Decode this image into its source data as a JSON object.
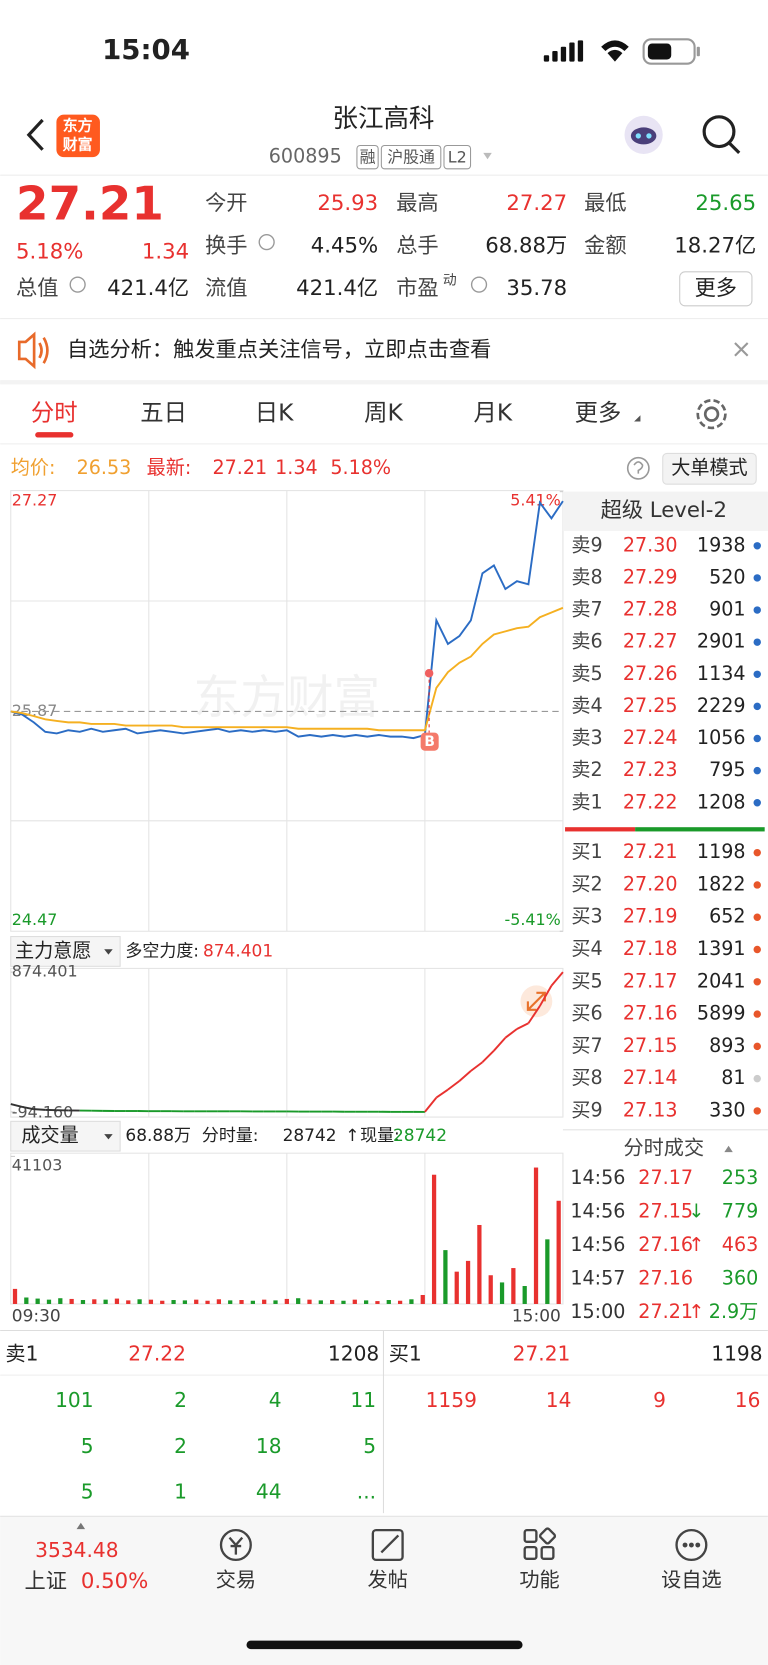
{
  "status_bar": {
    "time": "15:04"
  },
  "header": {
    "logo": [
      "东方",
      "财富"
    ],
    "title": "张江高科",
    "code": "600895",
    "tags": [
      "融",
      "沪股通",
      "L2"
    ]
  },
  "quote": {
    "price": "27.21",
    "change_pct": "5.18%",
    "change": "1.34",
    "stats": [
      [
        {
          "label": "今开",
          "value": "25.93"
        },
        {
          "label": "最高",
          "value": "27.27"
        },
        {
          "label": "最低",
          "value": "25.65"
        }
      ],
      [
        {
          "label": "换手",
          "value": "4.45%"
        },
        {
          "label": "总手",
          "value": "68.88万"
        },
        {
          "label": "金额",
          "value": "18.27亿"
        }
      ],
      [
        {
          "label": "总值",
          "value": "421.4亿"
        },
        {
          "label": "流值",
          "value": "421.4亿"
        },
        {
          "label": "市盈",
          "sup": "动",
          "value": "35.78"
        }
      ]
    ],
    "more": "更多"
  },
  "notice": "自选分析：触发重点关注信号，立即点击查看",
  "tabs": [
    "分时",
    "五日",
    "日K",
    "周K",
    "月K",
    "更多"
  ],
  "info_bar": {
    "avg_label": "均价:",
    "avg": "26.53",
    "latest_label": "最新:",
    "latest": "27.21",
    "change": "1.34",
    "change_pct": "5.18%",
    "button": "大单模式"
  },
  "chart_data": [
    {
      "type": "line",
      "watermark": "东方财富",
      "marker": "B",
      "ylim": [
        24.47,
        27.27
      ],
      "yticks": [
        27.27,
        25.87,
        24.47
      ],
      "y2lim": [
        -5.41,
        5.41
      ],
      "y2ticks": [
        {
          "value": 5.41,
          "label": "5.41%"
        },
        {
          "value": -5.41,
          "label": "-5.41%"
        }
      ],
      "series": [
        {
          "color": "#2b6cc4",
          "values": [
            25.87,
            25.85,
            25.8,
            25.74,
            25.73,
            25.75,
            25.74,
            25.76,
            25.74,
            25.75,
            25.76,
            25.73,
            25.74,
            25.75,
            25.74,
            25.73,
            25.74,
            25.75,
            25.76,
            25.74,
            25.75,
            25.74,
            25.75,
            25.74,
            25.75,
            25.71,
            25.72,
            25.71,
            25.72,
            25.71,
            25.72,
            25.71,
            25.72,
            25.71,
            25.71,
            25.7,
            25.72,
            26.45,
            26.3,
            26.35,
            26.45,
            26.75,
            26.8,
            26.65,
            26.7,
            26.68,
            27.2,
            27.1,
            27.21
          ]
        },
        {
          "color": "#f5b021",
          "values": [
            25.87,
            25.86,
            25.84,
            25.82,
            25.81,
            25.8,
            25.8,
            25.79,
            25.79,
            25.79,
            25.78,
            25.78,
            25.78,
            25.78,
            25.78,
            25.77,
            25.77,
            25.77,
            25.77,
            25.77,
            25.77,
            25.77,
            25.77,
            25.77,
            25.77,
            25.76,
            25.76,
            25.76,
            25.76,
            25.76,
            25.76,
            25.76,
            25.75,
            25.75,
            25.75,
            25.75,
            25.75,
            26.02,
            26.12,
            26.18,
            26.22,
            26.3,
            26.36,
            26.38,
            26.4,
            26.41,
            26.47,
            26.5,
            26.53
          ]
        }
      ]
    },
    {
      "type": "line",
      "title": "主力意愿",
      "indicator_label": "多空力度:",
      "indicator_value": "874.401",
      "ylim": [
        -130,
        900
      ],
      "yticks": [
        874.401,
        {
          "value": -94.16,
          "label": "-94.160"
        }
      ],
      "values": [
        -40,
        -60,
        -75,
        -80,
        -82,
        -84,
        -85,
        -86,
        -87,
        -88,
        -88,
        -88,
        -89,
        -89,
        -89,
        -90,
        -90,
        -90,
        -90,
        -90,
        -90,
        -91,
        -91,
        -91,
        -91,
        -92,
        -92,
        -92,
        -92,
        -93,
        -93,
        -93,
        -93,
        -94,
        -94,
        -94,
        -94.16,
        5,
        60,
        120,
        190,
        250,
        330,
        420,
        480,
        520,
        640,
        780,
        874.401
      ]
    },
    {
      "type": "bar",
      "title": "成交量",
      "total": "68.88万",
      "tick_vol_label": "分时量:",
      "tick_vol": "28742",
      "arrow": "↑",
      "cur_vol_label": "现量:",
      "cur_vol": "28742",
      "x_labels": [
        "09:30",
        "15:00"
      ],
      "ylim": [
        0,
        42000
      ],
      "yticks": [
        41103
      ],
      "values": [
        4200,
        1800,
        1500,
        1200,
        1600,
        1400,
        1100,
        1300,
        1200,
        1500,
        1000,
        1300,
        1200,
        900,
        1100,
        1000,
        1200,
        900,
        1300,
        1000,
        1100,
        900,
        1200,
        1000,
        1400,
        1600,
        1200,
        1000,
        1100,
        900,
        1200,
        1000,
        800,
        1100,
        900,
        1300,
        2500,
        36000,
        15000,
        9000,
        12000,
        22000,
        8000,
        6000,
        10000,
        5000,
        38000,
        18000,
        28742
      ]
    }
  ],
  "order_book": {
    "title": "超级 Level-2",
    "asks": [
      {
        "label": "卖9",
        "price": "27.30",
        "volume": "1938",
        "dot_color": "#2b6cc4"
      },
      {
        "label": "卖8",
        "price": "27.29",
        "volume": "520",
        "dot_color": "#2b6cc4"
      },
      {
        "label": "卖7",
        "price": "27.28",
        "volume": "901",
        "dot_color": "#2b6cc4"
      },
      {
        "label": "卖6",
        "price": "27.27",
        "volume": "2901",
        "dot_color": "#2b6cc4"
      },
      {
        "label": "卖5",
        "price": "27.26",
        "volume": "1134",
        "dot_color": "#2b6cc4"
      },
      {
        "label": "卖4",
        "price": "27.25",
        "volume": "2229",
        "dot_color": "#2b6cc4"
      },
      {
        "label": "卖3",
        "price": "27.24",
        "volume": "1056",
        "dot_color": "#2b6cc4"
      },
      {
        "label": "卖2",
        "price": "27.23",
        "volume": "795",
        "dot_color": "#2b6cc4"
      },
      {
        "label": "卖1",
        "price": "27.22",
        "volume": "1208",
        "dot_color": "#2b6cc4"
      }
    ],
    "bids": [
      {
        "label": "买1",
        "price": "27.21",
        "volume": "1198",
        "dot_color": "#e8562a"
      },
      {
        "label": "买2",
        "price": "27.20",
        "volume": "1822",
        "dot_color": "#e8562a"
      },
      {
        "label": "买3",
        "price": "27.19",
        "volume": "652",
        "dot_color": "#e8562a"
      },
      {
        "label": "买4",
        "price": "27.18",
        "volume": "1391",
        "dot_color": "#e8562a"
      },
      {
        "label": "买5",
        "price": "27.17",
        "volume": "2041",
        "dot_color": "#e8562a"
      },
      {
        "label": "买6",
        "price": "27.16",
        "volume": "5899",
        "dot_color": "#e8562a"
      },
      {
        "label": "买7",
        "price": "27.15",
        "volume": "893",
        "dot_color": "#e8562a"
      },
      {
        "label": "买8",
        "price": "27.14",
        "volume": "81",
        "dot_color": "#cccccc"
      },
      {
        "label": "买9",
        "price": "27.13",
        "volume": "330",
        "dot_color": "#e8562a"
      }
    ]
  },
  "trades": {
    "title": "分时成交",
    "rows": [
      {
        "time": "14:56",
        "price": "27.17",
        "volume": "253",
        "volume_color": "#1a9a2a"
      },
      {
        "time": "14:56",
        "price": "27.15",
        "arrow": "↓",
        "volume": "779",
        "volume_color": "#1a9a2a"
      },
      {
        "time": "14:56",
        "price": "27.16",
        "arrow": "↑",
        "volume": "463",
        "volume_color": "#e8312f"
      },
      {
        "time": "14:57",
        "price": "27.16",
        "volume": "360",
        "volume_color": "#1a9a2a"
      },
      {
        "time": "15:00",
        "price": "27.21",
        "arrow": "↑",
        "volume": "2.9万",
        "volume_color": "#1a9a2a"
      }
    ]
  },
  "bottom_book": {
    "sell": {
      "label": "卖1",
      "price": "27.22",
      "volume": "1208",
      "queue": [
        [
          "101",
          "2",
          "4",
          "11"
        ],
        [
          "5",
          "2",
          "18",
          "5"
        ],
        [
          "5",
          "1",
          "44",
          "..."
        ]
      ]
    },
    "buy": {
      "label": "买1",
      "price": "27.21",
      "volume": "1198",
      "queue": [
        [
          "1159",
          "14",
          "9",
          "16"
        ]
      ]
    }
  },
  "bottom_nav": {
    "index": {
      "value": "3534.48",
      "name": "上证",
      "change": "0.50%"
    },
    "items": [
      "交易",
      "发帖",
      "功能",
      "设自选"
    ]
  }
}
